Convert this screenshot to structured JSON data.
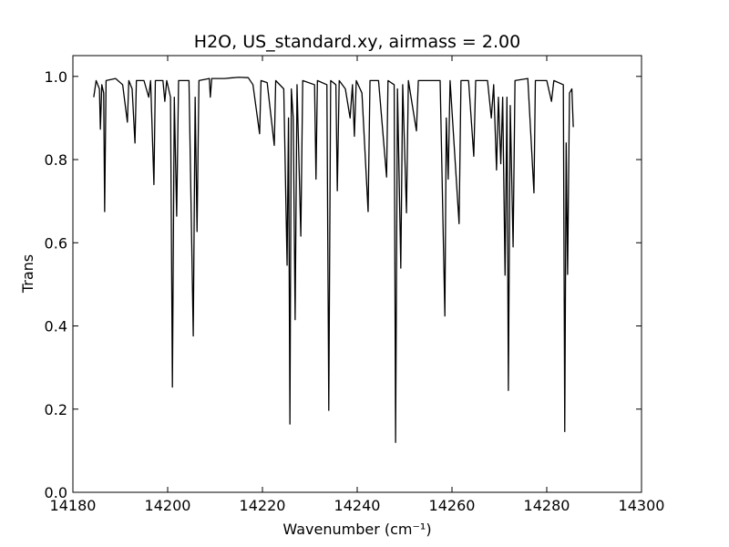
{
  "chart_data": {
    "type": "line",
    "title": "H2O, US_standard.xy, airmass = 2.00",
    "xlabel": "Wavenumber (cm⁻¹)",
    "ylabel": "Trans",
    "xlim": [
      14180,
      14300
    ],
    "xticks": [
      14180,
      14200,
      14220,
      14240,
      14260,
      14280,
      14300
    ],
    "ylim": [
      0,
      1.05
    ],
    "yticks": [
      {
        "value": 0,
        "label": "0.0"
      },
      0.2,
      0.4,
      0.6,
      0.8,
      {
        "value": 1,
        "label": "1.0"
      }
    ],
    "color": "#000000",
    "x": [
      14184.4,
      14184.9,
      14185.6,
      14185.8,
      14186.1,
      14186.5,
      14186.7,
      14187.0,
      14189.0,
      14190.5,
      14191.5,
      14191.8,
      14192.5,
      14193.1,
      14193.4,
      14195.0,
      14196.0,
      14196.4,
      14197.1,
      14197.4,
      14199.0,
      14199.4,
      14199.8,
      14200.6,
      14201.0,
      14201.4,
      14201.9,
      14202.3,
      14204.5,
      14205.4,
      14205.8,
      14206.2,
      14206.6,
      14208.8,
      14209.0,
      14209.3,
      14212,
      14215,
      14217,
      14218,
      14219.4,
      14219.7,
      14221,
      14222.5,
      14222.8,
      14224.5,
      14225.2,
      14225.5,
      14225.8,
      14226.1,
      14226.5,
      14226.9,
      14227.3,
      14228.1,
      14228.5,
      14231.0,
      14231.3,
      14231.6,
      14233.6,
      14234.0,
      14234.4,
      14235.5,
      14235.8,
      14236.2,
      14237.5,
      14238.5,
      14239.0,
      14239.4,
      14239.8,
      14241.0,
      14242.3,
      14242.7,
      14244.5,
      14246.2,
      14246.5,
      14247.8,
      14248.1,
      14248.5,
      14249.2,
      14249.6,
      14250.4,
      14250.8,
      14252.5,
      14252.9,
      14255,
      14257.5,
      14258.5,
      14258.8,
      14259.2,
      14259.6,
      14261.5,
      14261.9,
      14263.5,
      14264.6,
      14265.0,
      14267.5,
      14268.3,
      14268.8,
      14269.4,
      14269.8,
      14270.3,
      14270.7,
      14271.2,
      14271.6,
      14271.9,
      14272.3,
      14272.9,
      14273.3,
      14276,
      14277.3,
      14277.6,
      14280,
      14281,
      14281.5,
      14283.5,
      14283.8,
      14284.1,
      14284.4,
      14284.8,
      14285.3,
      14285.6
    ],
    "values": [
      0.95,
      0.99,
      0.97,
      0.873,
      0.98,
      0.96,
      0.675,
      0.99,
      0.995,
      0.98,
      0.89,
      0.99,
      0.97,
      0.84,
      0.99,
      0.99,
      0.95,
      0.99,
      0.74,
      0.99,
      0.99,
      0.94,
      0.99,
      0.95,
      0.253,
      0.95,
      0.664,
      0.99,
      0.99,
      0.376,
      0.95,
      0.627,
      0.99,
      0.995,
      0.95,
      0.995,
      0.995,
      0.998,
      0.997,
      0.98,
      0.862,
      0.99,
      0.985,
      0.834,
      0.99,
      0.97,
      0.546,
      0.9,
      0.164,
      0.97,
      0.9,
      0.415,
      0.98,
      0.616,
      0.99,
      0.98,
      0.753,
      0.99,
      0.98,
      0.197,
      0.99,
      0.98,
      0.725,
      0.99,
      0.97,
      0.9,
      0.98,
      0.856,
      0.99,
      0.96,
      0.675,
      0.99,
      0.99,
      0.758,
      0.99,
      0.98,
      0.12,
      0.97,
      0.539,
      0.98,
      0.672,
      0.99,
      0.869,
      0.99,
      0.99,
      0.99,
      0.424,
      0.9,
      0.753,
      0.99,
      0.646,
      0.99,
      0.99,
      0.808,
      0.99,
      0.99,
      0.9,
      0.98,
      0.775,
      0.95,
      0.79,
      0.95,
      0.522,
      0.95,
      0.245,
      0.93,
      0.59,
      0.99,
      0.995,
      0.72,
      0.99,
      0.99,
      0.94,
      0.99,
      0.98,
      0.146,
      0.84,
      0.524,
      0.96,
      0.97,
      0.878
    ]
  }
}
